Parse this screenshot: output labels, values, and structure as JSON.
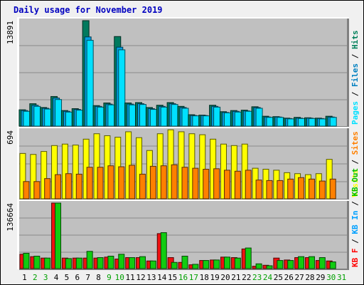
{
  "chart_data": {
    "type": "bar",
    "title": "Daily usage for November 2019",
    "categories": [
      "1",
      "2",
      "3",
      "4",
      "5",
      "6",
      "7",
      "8",
      "9",
      "10",
      "11",
      "12",
      "13",
      "14",
      "15",
      "16",
      "17",
      "18",
      "19",
      "20",
      "21",
      "22",
      "23",
      "24",
      "25",
      "26",
      "27",
      "28",
      "29",
      "30",
      "31"
    ],
    "weekend_days": [
      "2",
      "3",
      "9",
      "10",
      "16",
      "17",
      "23",
      "24",
      "30",
      "31"
    ],
    "panels": [
      {
        "id": "hits-files",
        "ymax_label": "13891",
        "ymax": 13891,
        "legend": [
          {
            "text": "Pages",
            "color": "#00e0ff"
          },
          {
            "text": " / ",
            "color": "#000000"
          },
          {
            "text": "Files",
            "color": "#0080c0"
          },
          {
            "text": " / ",
            "color": "#000000"
          },
          {
            "text": "Hits",
            "color": "#00805a"
          }
        ],
        "series": [
          {
            "name": "Hits",
            "color": "#007a5e",
            "values": [
              2150,
              2950,
              2450,
              3900,
              2050,
              2300,
              13891,
              2700,
              3050,
              11800,
              3050,
              3100,
              2450,
              2750,
              3100,
              2600,
              1500,
              1450,
              2750,
              1900,
              2050,
              2100,
              2550,
              1300,
              1250,
              1050,
              1150,
              1100,
              1050,
              1300,
              0
            ]
          },
          {
            "name": "Files",
            "color": "#00a0e0",
            "values": [
              2050,
              2750,
              2350,
              3700,
              1950,
              2200,
              11750,
              2600,
              2900,
              10400,
              2900,
              2950,
              2300,
              2600,
              2950,
              2450,
              1400,
              1400,
              2600,
              1800,
              1950,
              2000,
              2450,
              1200,
              1200,
              1000,
              1050,
              1050,
              1000,
              1200,
              0
            ]
          },
          {
            "name": "Pages",
            "color": "#00e0ff",
            "values": [
              1950,
              2600,
              2250,
              3500,
              1850,
              2100,
              11300,
              2500,
              2800,
              10050,
              2800,
              2850,
              2200,
              2500,
              2850,
              2350,
              1350,
              1350,
              2500,
              1750,
              1850,
              1950,
              2350,
              1150,
              1150,
              950,
              1000,
              1000,
              950,
              1150,
              0
            ]
          }
        ]
      },
      {
        "id": "visits-sites",
        "ymax_label": "694",
        "ymax": 694,
        "legend": [
          {
            "text": "Visits",
            "color": "#ffff00"
          },
          {
            "text": " / ",
            "color": "#000000"
          },
          {
            "text": "Sites",
            "color": "#ff8000"
          }
        ],
        "series": [
          {
            "name": "Visits",
            "color": "#ffff00",
            "values": [
              460,
              450,
              480,
              540,
              555,
              545,
              605,
              660,
              640,
              625,
              680,
              620,
              490,
              660,
              700,
              680,
              660,
              650,
              605,
              555,
              540,
              555,
              310,
              300,
              290,
              265,
              255,
              245,
              255,
              400,
              0
            ]
          },
          {
            "name": "Sites",
            "color": "#ff8000",
            "values": [
              175,
              175,
              205,
              245,
              255,
              250,
              320,
              320,
              335,
              325,
              340,
              250,
              330,
              335,
              345,
              320,
              310,
              300,
              305,
              290,
              280,
              290,
              190,
              185,
              185,
              200,
              215,
              200,
              180,
              200,
              0
            ]
          }
        ]
      },
      {
        "id": "kbytes",
        "ymax_label": "136664",
        "ymax": 136664,
        "legend": [
          {
            "text": "KB F",
            "color": "#ff0000"
          },
          {
            "text": " / ",
            "color": "#000000"
          },
          {
            "text": "KB In",
            "color": "#00a0ff"
          },
          {
            "text": " / ",
            "color": "#000000"
          },
          {
            "text": "KB Out",
            "color": "#00c000"
          }
        ],
        "series": [
          {
            "name": "KB F",
            "color": "#ee1111",
            "values": [
              30000,
              25000,
              22000,
              136664,
              22000,
              22000,
              22000,
              22000,
              24000,
              20000,
              23000,
              23000,
              16000,
              73000,
              23000,
              13000,
              8000,
              17000,
              18000,
              24000,
              23000,
              41000,
              5000,
              7000,
              22000,
              18000,
              23000,
              23000,
              17000,
              16000,
              0
            ]
          },
          {
            "name": "KB Out",
            "color": "#11cc11",
            "values": [
              32000,
              26000,
              22000,
              136664,
              21000,
              22000,
              36000,
              23000,
              26000,
              30000,
              23000,
              25000,
              16000,
              75000,
              13000,
              26000,
              9000,
              17000,
              18000,
              24000,
              22000,
              43000,
              10000,
              6000,
              17000,
              17000,
              25000,
              25000,
              23000,
              14000,
              0
            ]
          }
        ]
      }
    ],
    "xlabel": "",
    "ylabel": ""
  }
}
